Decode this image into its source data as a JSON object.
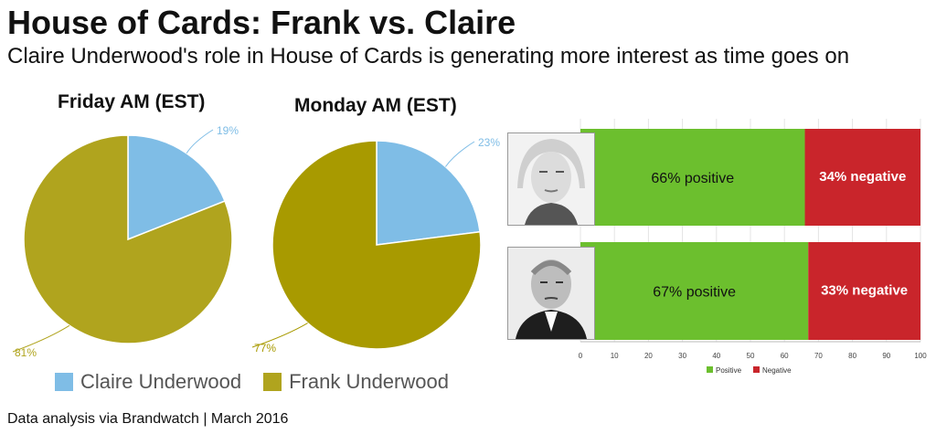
{
  "header": {
    "title": "House of Cards: Frank vs. Claire",
    "subtitle": "Claire Underwood's role in House of Cards is generating more interest as time goes on"
  },
  "legend": {
    "items": [
      {
        "label": "Claire Underwood",
        "color": "#7fbde6"
      },
      {
        "label": "Frank Underwood",
        "color": "#b0a41e"
      }
    ]
  },
  "source": "Data analysis via Brandwatch | March 2016",
  "chart_data": [
    {
      "type": "pie",
      "title": "Friday AM (EST)",
      "slices": [
        {
          "label": "Claire Underwood",
          "value": 19,
          "display": "19%",
          "color": "#7fbde6"
        },
        {
          "label": "Frank Underwood",
          "value": 81,
          "display": "81%",
          "color": "#b0a41e"
        }
      ]
    },
    {
      "type": "pie",
      "title": "Monday AM (EST)",
      "slices": [
        {
          "label": "Claire Underwood",
          "value": 23,
          "display": "23%",
          "color": "#7fbde6"
        },
        {
          "label": "Frank Underwood",
          "value": 77,
          "display": "77%",
          "color": "#a89a00"
        }
      ]
    },
    {
      "type": "bar",
      "orientation": "horizontal",
      "stacked": true,
      "categories": [
        "Claire Underwood",
        "Frank Underwood"
      ],
      "series": [
        {
          "name": "Positive",
          "values": [
            66,
            67
          ],
          "labels": [
            "66% positive",
            "67% positive"
          ],
          "color": "#6cbf2e"
        },
        {
          "name": "Negative",
          "values": [
            34,
            33
          ],
          "labels": [
            "34% negative",
            "33% negative"
          ],
          "color": "#c9252b"
        }
      ],
      "xlim": [
        0,
        100
      ],
      "xticks": [
        "0",
        "10",
        "20",
        "30",
        "40",
        "50",
        "60",
        "70",
        "80",
        "90",
        "100"
      ],
      "legend_position": "bottom"
    }
  ]
}
